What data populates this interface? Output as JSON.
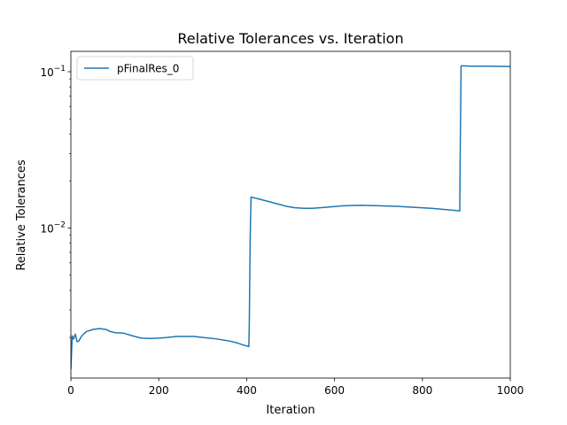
{
  "chart_data": {
    "type": "line",
    "title": "Relative Tolerances vs. Iteration",
    "xlabel": "Iteration",
    "ylabel": "Relative Tolerances",
    "xlim": [
      0,
      1000
    ],
    "ylim": [
      0.0011,
      0.135
    ],
    "yscale": "log",
    "x_ticks": [
      {
        "value": 0,
        "label": "0"
      },
      {
        "value": 200,
        "label": "200"
      },
      {
        "value": 400,
        "label": "400"
      },
      {
        "value": 600,
        "label": "600"
      },
      {
        "value": 800,
        "label": "800"
      },
      {
        "value": 1000,
        "label": "1000"
      }
    ],
    "y_ticks": [
      {
        "value": 0.01,
        "base": "10",
        "exp": "−2"
      },
      {
        "value": 0.1,
        "base": "10",
        "exp": "−1"
      }
    ],
    "y_minor_ticks": [
      0.002,
      0.003,
      0.004,
      0.005,
      0.006,
      0.007,
      0.008,
      0.009,
      0.02,
      0.03,
      0.04,
      0.05,
      0.06,
      0.07,
      0.08,
      0.09
    ],
    "grid": false,
    "legend": {
      "position": "upper-left"
    },
    "series": [
      {
        "name": "pFinalRes_0",
        "color": "#1f77b4",
        "x": [
          0,
          3,
          6,
          10,
          14,
          18,
          25,
          35,
          50,
          65,
          80,
          90,
          100,
          120,
          140,
          160,
          180,
          200,
          220,
          240,
          260,
          280,
          300,
          330,
          360,
          380,
          395,
          405,
          406,
          408,
          410,
          430,
          450,
          470,
          490,
          510,
          530,
          550,
          580,
          620,
          660,
          700,
          740,
          780,
          820,
          860,
          883,
          885,
          886,
          888,
          895,
          910,
          950,
          1000
        ],
        "y": [
          0.00125,
          0.00205,
          0.00195,
          0.0021,
          0.00188,
          0.0019,
          0.00205,
          0.00218,
          0.00225,
          0.00228,
          0.00225,
          0.00218,
          0.00215,
          0.00213,
          0.00205,
          0.00198,
          0.00197,
          0.00198,
          0.002,
          0.00203,
          0.00203,
          0.00203,
          0.002,
          0.00196,
          0.0019,
          0.00184,
          0.00178,
          0.00175,
          0.0024,
          0.0085,
          0.0158,
          0.0153,
          0.0148,
          0.0143,
          0.0138,
          0.0135,
          0.0134,
          0.0134,
          0.0136,
          0.0139,
          0.014,
          0.0139,
          0.0138,
          0.0136,
          0.0134,
          0.0131,
          0.0129,
          0.0129,
          0.03,
          0.109,
          0.109,
          0.1085,
          0.1085,
          0.108
        ]
      }
    ]
  }
}
